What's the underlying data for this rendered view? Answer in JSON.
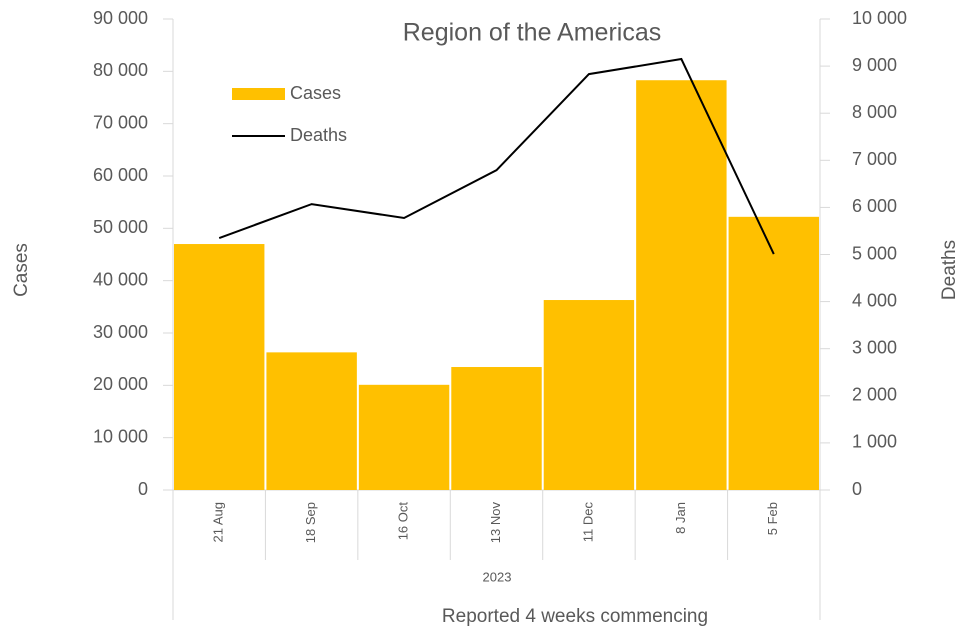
{
  "chart_data": {
    "type": "bar",
    "title": "Region of the Americas",
    "categories": [
      "21 Aug",
      "18 Sep",
      "16 Oct",
      "13 Nov",
      "11 Dec",
      "8 Jan",
      "5 Feb"
    ],
    "category_group": "2023",
    "xlabel": "Reported 4 weeks commencing",
    "ylabel": "Cases",
    "y2label": "Deaths",
    "series": [
      {
        "name": "Cases",
        "color": "#ffc000",
        "type": "bar",
        "values": [
          47000,
          26300,
          20100,
          23500,
          36300,
          78300,
          52200
        ]
      },
      {
        "name": "Deaths",
        "color": "#000000",
        "type": "line",
        "axis": "y2",
        "values": [
          5350,
          6070,
          5775,
          6790,
          8830,
          9150,
          5010
        ]
      }
    ],
    "ylim": [
      0,
      90000
    ],
    "yticks": [
      0,
      {
        "value": 10000,
        "label": "10 000"
      },
      {
        "value": 20000,
        "label": "20 000"
      },
      {
        "value": 30000,
        "label": "30 000"
      },
      {
        "value": 40000,
        "label": "40 000"
      },
      {
        "value": 50000,
        "label": "50 000"
      },
      {
        "value": 60000,
        "label": "60 000"
      },
      {
        "value": 70000,
        "label": "70 000"
      },
      {
        "value": 80000,
        "label": "80 000"
      },
      {
        "value": 90000,
        "label": "90 000"
      }
    ],
    "y2lim": [
      0,
      10000
    ],
    "y2ticks": [
      0,
      {
        "value": 1000,
        "label": "1 000"
      },
      {
        "value": 2000,
        "label": "2 000"
      },
      {
        "value": 3000,
        "label": "3 000"
      },
      {
        "value": 4000,
        "label": "4 000"
      },
      {
        "value": 5000,
        "label": "5 000"
      },
      {
        "value": 6000,
        "label": "6 000"
      },
      {
        "value": 7000,
        "label": "7 000"
      },
      {
        "value": 8000,
        "label": "8 000"
      },
      {
        "value": 9000,
        "label": "9 000"
      },
      {
        "value": 10000,
        "label": "10 000"
      }
    ],
    "legend": "upper left",
    "grid": false
  }
}
